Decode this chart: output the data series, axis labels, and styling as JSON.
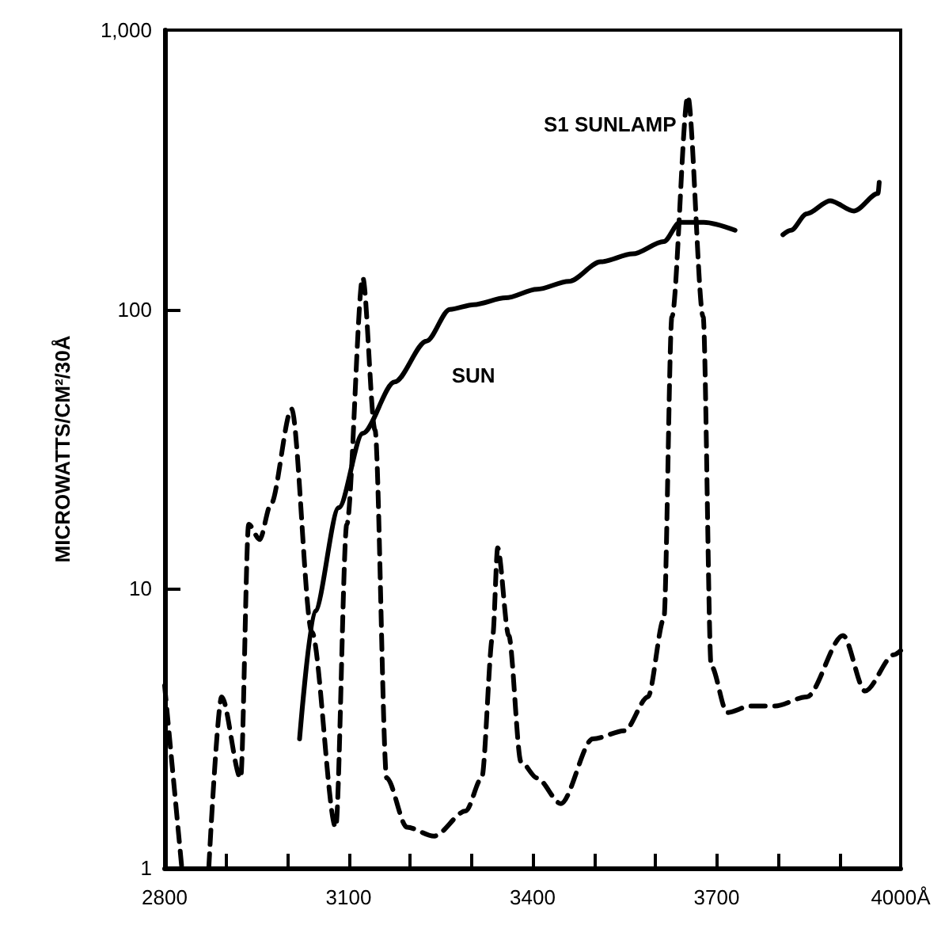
{
  "chart_data": {
    "type": "line",
    "ylabel": "MICROWATTS/CM²/30Å",
    "log": "y",
    "xlim": [
      2800,
      4000
    ],
    "ylim": [
      1,
      1000
    ],
    "xticks": [
      2800,
      {
        "value": 2900,
        "label": null
      },
      {
        "value": 3000,
        "label": null
      },
      3100,
      {
        "value": 3200,
        "label": null
      },
      {
        "value": 3300,
        "label": null
      },
      3400,
      {
        "value": 3500,
        "label": null
      },
      {
        "value": 3600,
        "label": null
      },
      3700,
      {
        "value": 3800,
        "label": null
      },
      {
        "value": 3900,
        "label": null
      },
      {
        "value": 4000,
        "label": "4000Å"
      }
    ],
    "yticks": [
      1,
      10,
      100,
      {
        "value": 1000,
        "label": "1,000"
      }
    ],
    "grid": false,
    "legend": false,
    "marker": "none",
    "tick_labels": "xy",
    "series": [
      {
        "name": "S1 SUNLAMP",
        "color": "#000000",
        "line_style": "dashed",
        "x": [
          2800,
          2828,
          2850,
          2872,
          2893,
          2924,
          2937,
          2955,
          2973,
          3007,
          3040,
          3079,
          3097,
          3123,
          3143,
          3162,
          3195,
          3239,
          3291,
          3317,
          3335,
          3343,
          3361,
          3381,
          3407,
          3446,
          3498,
          3550,
          3588,
          3614,
          3627,
          3653,
          3678,
          3691,
          3717,
          3755,
          3795,
          3847,
          3906,
          3942,
          3989,
          4000
        ],
        "values": [
          4.5,
          1,
          null,
          1,
          4.1,
          2.1,
          17,
          15,
          20,
          44,
          7,
          1.4,
          17,
          130,
          37,
          2.1,
          1.4,
          1.3,
          1.6,
          2.1,
          6.8,
          14,
          6.8,
          2.4,
          2.1,
          1.7,
          2.9,
          3.1,
          4.1,
          7.8,
          94,
          580,
          94,
          5.3,
          3.6,
          3.8,
          3.8,
          4.1,
          6.8,
          4.3,
          5.8,
          6
        ]
      },
      {
        "name": "SUN",
        "color": "#000000",
        "line_style": "solid",
        "x": [
          3020,
          3045,
          3084,
          3123,
          3175,
          3227,
          3265,
          3304,
          3356,
          3407,
          3459,
          3511,
          3563,
          3614,
          3640,
          3679,
          3730,
          3770,
          3808,
          3821,
          3847,
          3885,
          3924,
          3963,
          3965
        ],
        "values": [
          2.9,
          8.3,
          19.5,
          36,
          55,
          77,
          100,
          104,
          110,
          118,
          126,
          148,
          158,
          175,
          205,
          205,
          192,
          null,
          185,
          192,
          220,
          245,
          225,
          260,
          285
        ]
      }
    ]
  }
}
